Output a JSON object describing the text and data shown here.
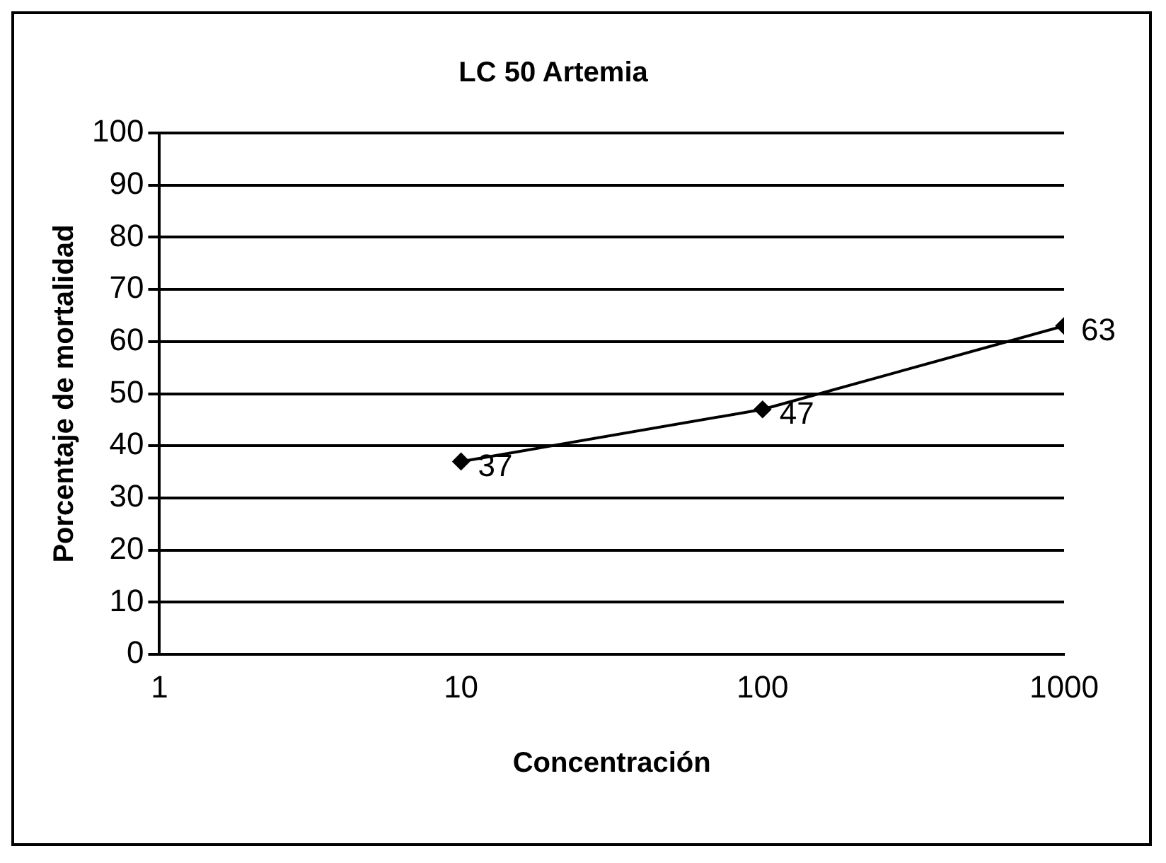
{
  "chart_data": {
    "type": "line",
    "title": "LC 50 Artemia",
    "xlabel": "Concentración",
    "ylabel": "Porcentaje de mortalidad",
    "x": [
      10,
      100,
      1000
    ],
    "series": [
      {
        "color": "#000000",
        "values": [
          37,
          47,
          63
        ]
      }
    ],
    "log": "x",
    "xlim": [
      1,
      1000
    ],
    "xticks": [
      1,
      10,
      100,
      1000
    ],
    "ylim": [
      0,
      100
    ],
    "yticks": [
      0,
      10,
      20,
      30,
      40,
      50,
      60,
      70,
      80,
      90,
      100
    ],
    "grid": "y",
    "legend": false,
    "marker": "diamond",
    "line_style": "solid",
    "data_labels": true
  }
}
